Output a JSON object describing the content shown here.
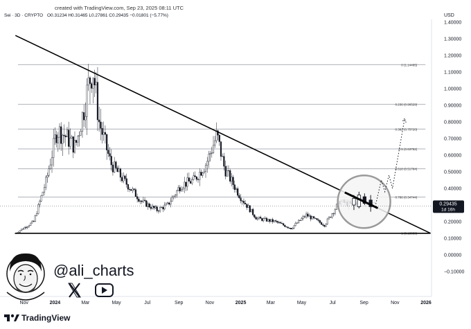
{
  "header": {
    "created_line": "created with TradingView.com, Sep 23, 2025 08:11 UTC",
    "symbol": "Sei · 3D · CRYPTO",
    "ohlc_line": "O0.31234 H0.31465 L0.27861 C0.29435 −0.01801 (−5.77%)"
  },
  "price_axis": {
    "currency": "USD",
    "ticks": [
      "1.40000",
      "1.30000",
      "1.20000",
      "1.10000",
      "1.00000",
      "0.90000",
      "0.80000",
      "0.70000",
      "0.60000",
      "0.50000",
      "0.40000",
      "0.30000",
      "0.20000",
      "0.10000",
      "0.00000",
      "−0.10000"
    ],
    "current_price": "0.29435",
    "countdown": "1d 16h"
  },
  "time_axis": {
    "ticks": [
      "Nov",
      "2024",
      "Mar",
      "May",
      "Jul",
      "Sep",
      "Nov",
      "2025",
      "Mar",
      "May",
      "Jul",
      "Sep",
      "Nov",
      "2026"
    ]
  },
  "fib_levels": [
    {
      "label": "0 (1.14465)",
      "value": 1.14465
    },
    {
      "label": "0.236 (0.90529)",
      "value": 0.90529
    },
    {
      "label": "0.382 (0.75720)",
      "value": 0.7572
    },
    {
      "label": "0.5 (0.63752)",
      "value": 0.63752
    },
    {
      "label": "0.618 (0.51784)",
      "value": 0.51784
    },
    {
      "label": "0.786 (0.34744)",
      "value": 0.34744
    },
    {
      "label": "1 (0.13039)",
      "value": 0.13039
    }
  ],
  "branding": {
    "handle": "@ali_charts",
    "x_icon": "x-logo-icon",
    "youtube_icon": "youtube-play-icon",
    "footer_logo": "TradingView"
  },
  "colors": {
    "candle": "#131722",
    "fib_line": "#9598a1",
    "trendline": "#000000",
    "price_label_bg": "#131722"
  },
  "chart_data": {
    "type": "candlestick",
    "symbol": "Sei · 3D · CRYPTO",
    "ylim": [
      -0.1,
      1.4
    ],
    "y_unit": "USD",
    "ohlc": {
      "open": 0.31234,
      "high": 0.31465,
      "low": 0.27861,
      "close": 0.29435,
      "change": -0.01801,
      "change_pct": -5.77
    },
    "price_path": [
      {
        "x": "2023-10-15",
        "y": 0.13
      },
      {
        "x": "2023-11-20",
        "y": 0.2
      },
      {
        "x": "2023-12-15",
        "y": 0.45
      },
      {
        "x": "2024-01-05",
        "y": 0.75
      },
      {
        "x": "2024-01-20",
        "y": 0.72
      },
      {
        "x": "2024-02-10",
        "y": 0.65
      },
      {
        "x": "2024-02-25",
        "y": 0.85
      },
      {
        "x": "2024-03-15",
        "y": 1.14
      },
      {
        "x": "2024-03-28",
        "y": 0.8
      },
      {
        "x": "2024-04-20",
        "y": 0.55
      },
      {
        "x": "2024-05-15",
        "y": 0.45
      },
      {
        "x": "2024-06-20",
        "y": 0.32
      },
      {
        "x": "2024-07-20",
        "y": 0.27
      },
      {
        "x": "2024-08-10",
        "y": 0.3
      },
      {
        "x": "2024-09-05",
        "y": 0.42
      },
      {
        "x": "2024-10-01",
        "y": 0.45
      },
      {
        "x": "2024-10-25",
        "y": 0.55
      },
      {
        "x": "2024-11-15",
        "y": 0.72
      },
      {
        "x": "2024-11-30",
        "y": 0.52
      },
      {
        "x": "2024-12-31",
        "y": 0.35
      },
      {
        "x": "2025-02-01",
        "y": 0.22
      },
      {
        "x": "2025-03-10",
        "y": 0.2
      },
      {
        "x": "2025-04-10",
        "y": 0.16
      },
      {
        "x": "2025-05-10",
        "y": 0.24
      },
      {
        "x": "2025-06-15",
        "y": 0.18
      },
      {
        "x": "2025-07-15",
        "y": 0.32
      },
      {
        "x": "2025-08-10",
        "y": 0.3
      },
      {
        "x": "2025-08-25",
        "y": 0.34
      },
      {
        "x": "2025-09-23",
        "y": 0.29435
      }
    ],
    "descending_trendline": [
      {
        "x": "2023-10-15",
        "y": 1.32
      },
      {
        "x": "2026-01-10",
        "y": 0.13
      }
    ],
    "baseline": [
      {
        "x": "2023-10-15",
        "y": 0.13
      },
      {
        "x": "2026-01-10",
        "y": 0.13
      }
    ],
    "projection_path": [
      {
        "x": "2025-09-23",
        "y": 0.29
      },
      {
        "x": "2025-10-05",
        "y": 0.45
      },
      {
        "x": "2025-10-12",
        "y": 0.38
      },
      {
        "x": "2025-10-20",
        "y": 0.48
      },
      {
        "x": "2025-10-27",
        "y": 0.4
      },
      {
        "x": "2025-11-20",
        "y": 0.82
      }
    ]
  }
}
